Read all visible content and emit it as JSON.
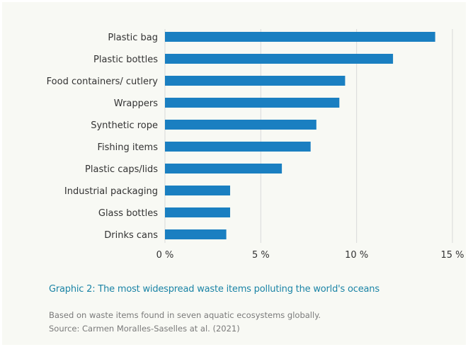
{
  "colors": {
    "bar": "#1a7fc1",
    "caption": "#1b84a6",
    "grid": "#d9d9d9",
    "background": "#f8f9f4"
  },
  "caption": "Graphic 2: The most widespread waste items polluting the world's oceans",
  "notes": {
    "line1": "Based on waste items found in seven aquatic ecosystems globally.",
    "line2": "Source: Carmen Moralles-Saselles at al. (2021)"
  },
  "chart_data": {
    "type": "bar",
    "orientation": "horizontal",
    "categories": [
      "Plastic bag",
      "Plastic bottles",
      "Food containers/ cutlery",
      "Wrappers",
      "Synthetic rope",
      "Fishing items",
      "Plastic caps/lids",
      "Industrial packaging",
      "Glass bottles",
      "Drinks cans"
    ],
    "values": [
      14.1,
      11.9,
      9.4,
      9.1,
      7.9,
      7.6,
      6.1,
      3.4,
      3.4,
      3.2
    ],
    "xlim": [
      0,
      15
    ],
    "xticks": [
      0,
      5,
      10,
      15
    ],
    "xtick_labels": [
      "0 %",
      "5 %",
      "10 %",
      "15 %"
    ],
    "grid": "vertical",
    "legend": "none"
  }
}
